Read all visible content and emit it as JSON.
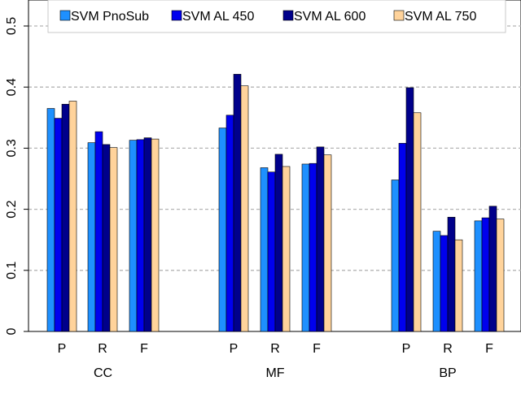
{
  "chart_data": {
    "type": "bar",
    "title": "",
    "xlabel": "",
    "ylabel": "",
    "ylim": [
      0,
      0.53
    ],
    "yticks": [
      "0",
      "0.1",
      "0.2",
      "0.3",
      "0.4",
      "0.5"
    ],
    "grid": "horizontal dashed",
    "legend_position": "top",
    "groups": [
      {
        "name": "CC",
        "categories": [
          "P",
          "R",
          "F"
        ]
      },
      {
        "name": "MF",
        "categories": [
          "P",
          "R",
          "F"
        ]
      },
      {
        "name": "BP",
        "categories": [
          "P",
          "R",
          "F"
        ]
      }
    ],
    "series": [
      {
        "name": "SVM PnoSub",
        "color": "#1e90ff",
        "values": [
          0.365,
          0.309,
          0.313,
          0.333,
          0.268,
          0.274,
          0.248,
          0.164,
          0.181
        ]
      },
      {
        "name": "SVM AL 450",
        "color": "#0000ee",
        "values": [
          0.349,
          0.327,
          0.314,
          0.354,
          0.261,
          0.275,
          0.308,
          0.157,
          0.186
        ]
      },
      {
        "name": "SVM AL 600",
        "color": "#00008b",
        "values": [
          0.372,
          0.306,
          0.317,
          0.421,
          0.29,
          0.302,
          0.399,
          0.187,
          0.205
        ]
      },
      {
        "name": "SVM AL 750",
        "color": "#ffd39b",
        "values": [
          0.377,
          0.301,
          0.315,
          0.402,
          0.27,
          0.289,
          0.358,
          0.15,
          0.184
        ]
      }
    ]
  }
}
